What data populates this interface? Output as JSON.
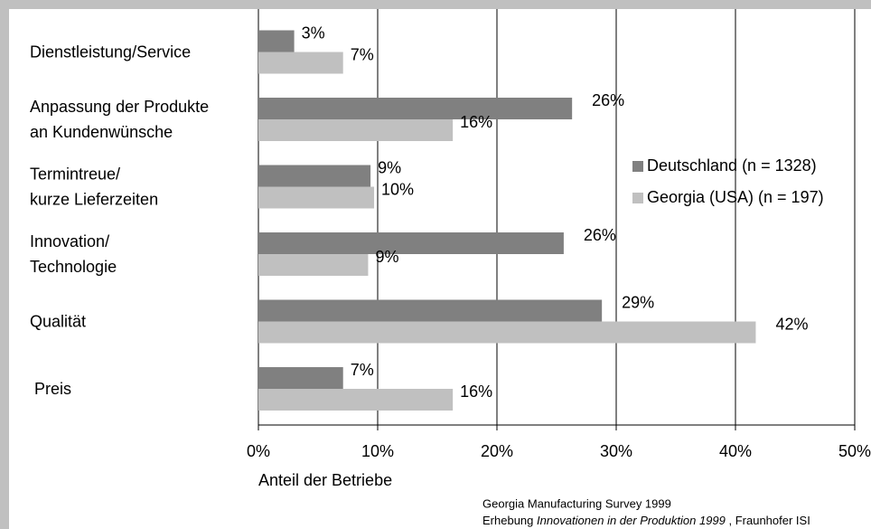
{
  "chart_data": {
    "type": "hbar",
    "categories": [
      "Dienstleistung/Service",
      "Anpassung der Produkte\nan Kundenwünsche",
      "Termintreue/\nkurze Lieferzeiten",
      "Innovation/\nTechnologie",
      "Qualität",
      " Preis"
    ],
    "series": [
      {
        "name": "Deutschland (n = 1328)",
        "color": "#808080",
        "values": [
          3,
          26.3,
          9.4,
          25.6,
          28.8,
          7.1
        ],
        "value_labels": [
          "3%",
          "26%",
          "9%",
          "26%",
          "29%",
          "7%"
        ]
      },
      {
        "name": "Georgia (USA) (n = 197)",
        "color": "#c0c0c0",
        "values": [
          7.1,
          16.3,
          9.7,
          9.2,
          41.7,
          16.3
        ],
        "value_labels": [
          "7%",
          "16%",
          "10%",
          "9%",
          "42%",
          "16%"
        ]
      }
    ],
    "xlim": [
      0,
      50
    ],
    "xticks": [
      {
        "value": 0,
        "label": "0%"
      },
      {
        "value": 10,
        "label": "10%"
      },
      {
        "value": 20,
        "label": "20%"
      },
      {
        "value": 30,
        "label": "30%"
      },
      {
        "value": 40,
        "label": "40%"
      },
      {
        "value": 50,
        "label": "50%"
      }
    ],
    "xlabel": "Anteil der Betriebe",
    "grid": true,
    "source": {
      "line1": "Georgia Manufacturing Survey 1999",
      "line2": [
        "Erhebung ",
        "Innovationen in der Produktion 1999",
        " , Fraunhofer ISI"
      ]
    }
  }
}
